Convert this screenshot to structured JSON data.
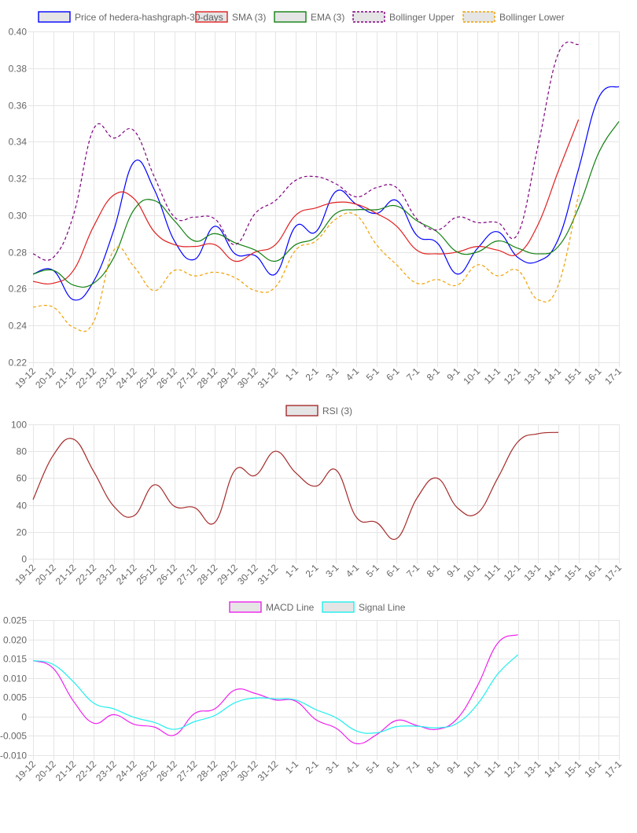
{
  "chart_data": [
    {
      "type": "line",
      "legend_position": "top",
      "grid": true,
      "categories": [
        "19-12",
        "20-12",
        "21-12",
        "22-12",
        "23-12",
        "24-12",
        "25-12",
        "26-12",
        "27-12",
        "28-12",
        "29-12",
        "30-12",
        "31-12",
        "1-1",
        "2-1",
        "3-1",
        "4-1",
        "5-1",
        "6-1",
        "7-1",
        "8-1",
        "9-1",
        "10-1",
        "11-1",
        "12-1",
        "13-1",
        "14-1",
        "15-1",
        "16-1",
        "17-1"
      ],
      "ylim": [
        0.22,
        0.4
      ],
      "yticks": [
        "0.40",
        "0.38",
        "0.36",
        "0.34",
        "0.32",
        "0.30",
        "0.28",
        "0.26",
        "0.24",
        "0.22"
      ],
      "series": [
        {
          "name": "Price of hedera-hashgraph-30-days",
          "color": "#0000ff",
          "dash": false,
          "values": [
            0.268,
            0.27,
            0.254,
            0.264,
            0.292,
            0.329,
            0.314,
            0.286,
            0.276,
            0.294,
            0.279,
            0.278,
            0.268,
            0.294,
            0.291,
            0.313,
            0.306,
            0.301,
            0.308,
            0.289,
            0.285,
            0.268,
            0.282,
            0.291,
            0.277,
            0.275,
            0.287,
            0.325,
            0.364,
            0.37
          ]
        },
        {
          "name": "SMA (3)",
          "color": "#e02020",
          "dash": false,
          "values": [
            0.264,
            0.263,
            0.27,
            0.294,
            0.311,
            0.309,
            0.291,
            0.284,
            0.283,
            0.284,
            0.275,
            0.28,
            0.284,
            0.3,
            0.304,
            0.307,
            0.306,
            0.301,
            0.294,
            0.281,
            0.279,
            0.28,
            0.283,
            0.281,
            0.279,
            0.295,
            0.324,
            0.352,
            null,
            null
          ]
        },
        {
          "name": "EMA (3)",
          "color": "#108010",
          "dash": false,
          "values": [
            0.268,
            0.27,
            0.262,
            0.263,
            0.277,
            0.303,
            0.308,
            0.297,
            0.286,
            0.29,
            0.285,
            0.281,
            0.275,
            0.284,
            0.288,
            0.301,
            0.303,
            0.303,
            0.305,
            0.297,
            0.291,
            0.28,
            0.28,
            0.286,
            0.282,
            0.279,
            0.283,
            0.304,
            0.334,
            0.351
          ]
        },
        {
          "name": "Bollinger Upper",
          "color": "#800080",
          "dash": true,
          "values": [
            0.279,
            0.277,
            0.3,
            0.347,
            0.342,
            0.346,
            0.321,
            0.299,
            0.299,
            0.298,
            0.284,
            0.301,
            0.308,
            0.319,
            0.321,
            0.317,
            0.31,
            0.315,
            0.315,
            0.298,
            0.292,
            0.299,
            0.296,
            0.296,
            0.29,
            0.338,
            0.388,
            0.393,
            null,
            null
          ]
        },
        {
          "name": "Bollinger Lower",
          "color": "#f0a000",
          "dash": true,
          "values": [
            0.25,
            0.25,
            0.239,
            0.242,
            0.281,
            0.272,
            0.259,
            0.27,
            0.267,
            0.269,
            0.266,
            0.259,
            0.261,
            0.281,
            0.286,
            0.298,
            0.3,
            0.284,
            0.273,
            0.263,
            0.265,
            0.262,
            0.273,
            0.267,
            0.27,
            0.254,
            0.262,
            0.311,
            null,
            null
          ]
        }
      ]
    },
    {
      "type": "line",
      "legend_position": "top",
      "grid": true,
      "categories": [
        "19-12",
        "20-12",
        "21-12",
        "22-12",
        "23-12",
        "24-12",
        "25-12",
        "26-12",
        "27-12",
        "28-12",
        "29-12",
        "30-12",
        "31-12",
        "1-1",
        "2-1",
        "3-1",
        "4-1",
        "5-1",
        "6-1",
        "7-1",
        "8-1",
        "9-1",
        "10-1",
        "11-1",
        "12-1",
        "13-1",
        "14-1",
        "15-1",
        "16-1",
        "17-1"
      ],
      "ylim": [
        0,
        100
      ],
      "yticks": [
        "100",
        "80",
        "60",
        "40",
        "20",
        "0"
      ],
      "series": [
        {
          "name": "RSI (3)",
          "color": "#a52a2a",
          "dash": false,
          "values": [
            44,
            77,
            89,
            65,
            39,
            32,
            55,
            39,
            38,
            27,
            66,
            62,
            80,
            64,
            54,
            66,
            31,
            27,
            15,
            45,
            60,
            38,
            34,
            60,
            87,
            93,
            94,
            null,
            null,
            null
          ]
        }
      ]
    },
    {
      "type": "line",
      "legend_position": "top",
      "grid": true,
      "categories": [
        "19-12",
        "20-12",
        "21-12",
        "22-12",
        "23-12",
        "24-12",
        "25-12",
        "26-12",
        "27-12",
        "28-12",
        "29-12",
        "30-12",
        "31-12",
        "1-1",
        "2-1",
        "3-1",
        "4-1",
        "5-1",
        "6-1",
        "7-1",
        "8-1",
        "9-1",
        "10-1",
        "11-1",
        "12-1",
        "13-1",
        "14-1",
        "15-1",
        "16-1",
        "17-1"
      ],
      "ylim": [
        -0.01,
        0.025
      ],
      "yticks": [
        "0.025",
        "0.020",
        "0.015",
        "0.010",
        "0.005",
        "0",
        "-0.005",
        "-0.010"
      ],
      "series": [
        {
          "name": "MACD Line",
          "color": "#ee22ee",
          "dash": false,
          "values": [
            0.0145,
            0.0125,
            0.004,
            -0.0017,
            0.0005,
            -0.002,
            -0.0027,
            -0.0048,
            0.0008,
            0.002,
            0.0069,
            0.006,
            0.0043,
            0.004,
            -0.0008,
            -0.003,
            -0.007,
            -0.0047,
            -0.001,
            -0.0023,
            -0.0033,
            -0.0005,
            0.008,
            0.019,
            0.0212,
            null,
            null,
            null,
            null,
            null
          ]
        },
        {
          "name": "Signal Line",
          "color": "#22eeee",
          "dash": false,
          "values": [
            0.0145,
            0.0135,
            0.009,
            0.0035,
            0.002,
            -0.0002,
            -0.0015,
            -0.0033,
            -0.0013,
            0.0003,
            0.0036,
            0.0048,
            0.0046,
            0.0043,
            0.0018,
            -0.0003,
            -0.0037,
            -0.0042,
            -0.0026,
            -0.0025,
            -0.0029,
            -0.0017,
            0.0032,
            0.011,
            0.016,
            null,
            null,
            null,
            null,
            null
          ]
        }
      ]
    }
  ]
}
